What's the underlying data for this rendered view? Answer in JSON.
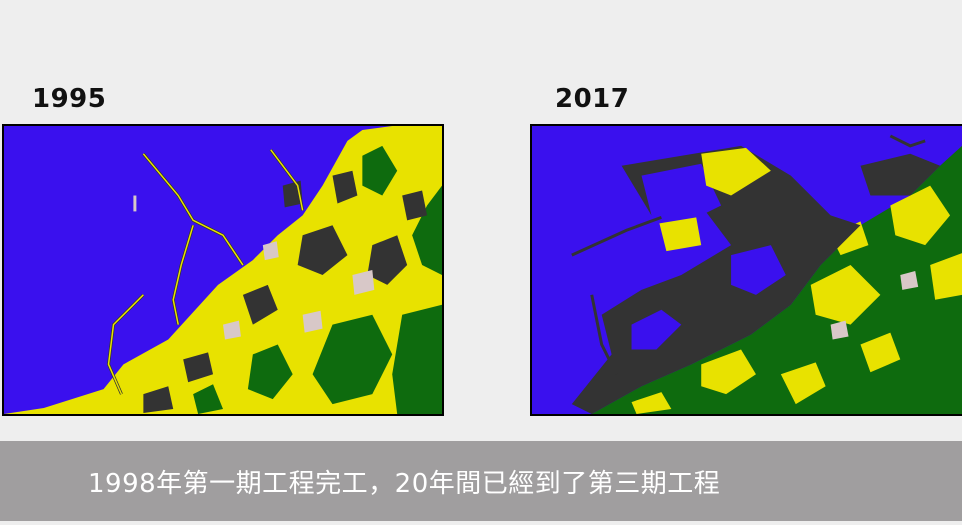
{
  "panels": [
    {
      "year": "1995"
    },
    {
      "year": "2017"
    }
  ],
  "caption": "1998年第一期工程完工，20年間已經到了第三期工程",
  "colors": {
    "water": "#3a10ee",
    "urban": "#ffff00",
    "vegetation": "#0e6b0e",
    "built": "#333333",
    "bare": "#d8c8c8",
    "caption_bg": "#a09e9f"
  }
}
